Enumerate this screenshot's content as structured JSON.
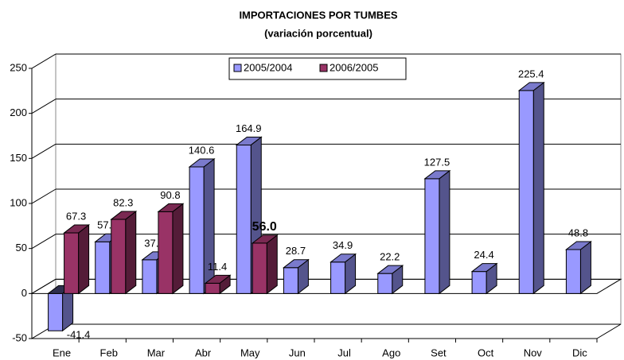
{
  "chart_data": {
    "type": "bar3d",
    "title": "IMPORTACIONES POR TUMBES",
    "subtitle": "(variación porcentual)",
    "categories": [
      "Ene",
      "Feb",
      "Mar",
      "Abr",
      "May",
      "Jun",
      "Jul",
      "Ago",
      "Set",
      "Oct",
      "Nov",
      "Dic"
    ],
    "series": [
      {
        "name": "2005/2004",
        "color": "#9999ff",
        "values": [
          -41.4,
          57.4,
          37.5,
          140.6,
          164.9,
          28.7,
          34.9,
          22.2,
          127.5,
          24.4,
          225.4,
          48.8
        ]
      },
      {
        "name": "2006/2005",
        "color": "#993366",
        "values": [
          67.3,
          82.3,
          90.8,
          11.4,
          56,
          null,
          null,
          null,
          null,
          null,
          null,
          null
        ],
        "value_labels": [
          null,
          null,
          null,
          null,
          "56.0",
          null,
          null,
          null,
          null,
          null,
          null,
          null
        ]
      }
    ],
    "ylim": [
      -50,
      250
    ],
    "yticks": [
      -50,
      0,
      50,
      100,
      150,
      200,
      250
    ],
    "grid": true
  }
}
